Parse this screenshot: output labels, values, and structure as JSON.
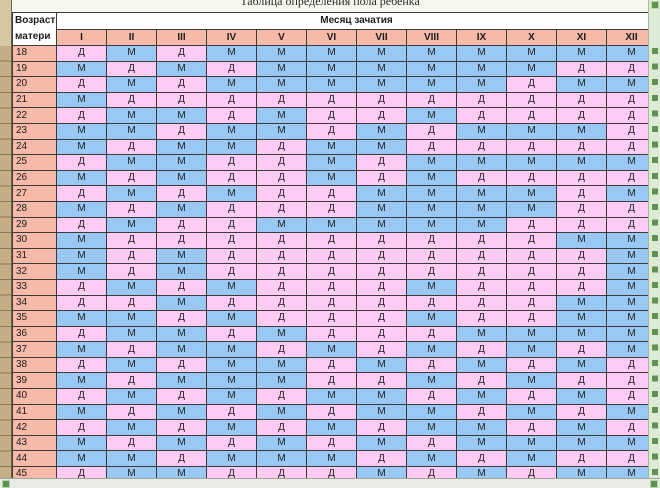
{
  "title": "Таблица определения пола ребенка",
  "table": {
    "age_header": {
      "line1": "Возраст",
      "line2": "матери"
    },
    "month_header": "Месяц зачатия",
    "months": [
      "I",
      "II",
      "III",
      "IV",
      "V",
      "VI",
      "VII",
      "VIII",
      "IX",
      "X",
      "XI",
      "XII"
    ],
    "rows": [
      {
        "age": 18,
        "cells": [
          "Д",
          "М",
          "Д",
          "М",
          "М",
          "М",
          "М",
          "М",
          "М",
          "М",
          "М",
          "М"
        ]
      },
      {
        "age": 19,
        "cells": [
          "М",
          "Д",
          "М",
          "Д",
          "М",
          "М",
          "М",
          "М",
          "М",
          "М",
          "Д",
          "Д"
        ]
      },
      {
        "age": 20,
        "cells": [
          "Д",
          "М",
          "Д",
          "М",
          "М",
          "М",
          "М",
          "М",
          "М",
          "Д",
          "М",
          "М"
        ]
      },
      {
        "age": 21,
        "cells": [
          "М",
          "Д",
          "Д",
          "Д",
          "Д",
          "Д",
          "Д",
          "Д",
          "Д",
          "Д",
          "Д",
          "Д"
        ]
      },
      {
        "age": 22,
        "cells": [
          "Д",
          "М",
          "М",
          "Д",
          "М",
          "Д",
          "Д",
          "М",
          "Д",
          "Д",
          "Д",
          "Д"
        ]
      },
      {
        "age": 23,
        "cells": [
          "М",
          "М",
          "Д",
          "М",
          "М",
          "Д",
          "М",
          "Д",
          "М",
          "М",
          "М",
          "Д"
        ]
      },
      {
        "age": 24,
        "cells": [
          "М",
          "Д",
          "М",
          "М",
          "Д",
          "М",
          "М",
          "Д",
          "Д",
          "Д",
          "Д",
          "Д"
        ]
      },
      {
        "age": 25,
        "cells": [
          "Д",
          "М",
          "М",
          "Д",
          "Д",
          "М",
          "Д",
          "М",
          "М",
          "М",
          "М",
          "М"
        ]
      },
      {
        "age": 26,
        "cells": [
          "М",
          "Д",
          "М",
          "Д",
          "Д",
          "М",
          "Д",
          "М",
          "Д",
          "Д",
          "Д",
          "Д"
        ]
      },
      {
        "age": 27,
        "cells": [
          "Д",
          "М",
          "Д",
          "М",
          "Д",
          "Д",
          "М",
          "М",
          "М",
          "М",
          "Д",
          "М"
        ]
      },
      {
        "age": 28,
        "cells": [
          "М",
          "Д",
          "М",
          "Д",
          "Д",
          "Д",
          "М",
          "М",
          "М",
          "М",
          "Д",
          "Д"
        ]
      },
      {
        "age": 29,
        "cells": [
          "Д",
          "М",
          "Д",
          "Д",
          "М",
          "М",
          "М",
          "М",
          "М",
          "Д",
          "Д",
          "Д"
        ]
      },
      {
        "age": 30,
        "cells": [
          "М",
          "Д",
          "Д",
          "Д",
          "Д",
          "Д",
          "Д",
          "Д",
          "Д",
          "Д",
          "М",
          "М"
        ]
      },
      {
        "age": 31,
        "cells": [
          "М",
          "Д",
          "М",
          "Д",
          "Д",
          "Д",
          "Д",
          "Д",
          "Д",
          "Д",
          "Д",
          "М"
        ]
      },
      {
        "age": 32,
        "cells": [
          "М",
          "Д",
          "М",
          "Д",
          "Д",
          "Д",
          "Д",
          "Д",
          "Д",
          "Д",
          "Д",
          "М"
        ]
      },
      {
        "age": 33,
        "cells": [
          "Д",
          "М",
          "Д",
          "М",
          "Д",
          "Д",
          "Д",
          "М",
          "Д",
          "Д",
          "Д",
          "М"
        ]
      },
      {
        "age": 34,
        "cells": [
          "Д",
          "Д",
          "М",
          "Д",
          "Д",
          "Д",
          "Д",
          "Д",
          "Д",
          "Д",
          "М",
          "М"
        ]
      },
      {
        "age": 35,
        "cells": [
          "М",
          "М",
          "Д",
          "М",
          "Д",
          "Д",
          "Д",
          "М",
          "Д",
          "Д",
          "М",
          "М"
        ]
      },
      {
        "age": 36,
        "cells": [
          "Д",
          "М",
          "М",
          "Д",
          "М",
          "Д",
          "Д",
          "Д",
          "М",
          "М",
          "М",
          "М"
        ]
      },
      {
        "age": 37,
        "cells": [
          "М",
          "Д",
          "М",
          "М",
          "Д",
          "М",
          "Д",
          "М",
          "Д",
          "М",
          "Д",
          "М"
        ]
      },
      {
        "age": 38,
        "cells": [
          "Д",
          "М",
          "Д",
          "М",
          "М",
          "Д",
          "М",
          "Д",
          "М",
          "Д",
          "М",
          "Д"
        ]
      },
      {
        "age": 39,
        "cells": [
          "М",
          "Д",
          "М",
          "М",
          "М",
          "Д",
          "Д",
          "М",
          "Д",
          "М",
          "Д",
          "Д"
        ]
      },
      {
        "age": 40,
        "cells": [
          "Д",
          "М",
          "Д",
          "М",
          "Д",
          "М",
          "М",
          "Д",
          "М",
          "Д",
          "М",
          "Д"
        ]
      },
      {
        "age": 41,
        "cells": [
          "М",
          "Д",
          "М",
          "Д",
          "М",
          "Д",
          "М",
          "М",
          "Д",
          "М",
          "Д",
          "М"
        ]
      },
      {
        "age": 42,
        "cells": [
          "Д",
          "М",
          "Д",
          "М",
          "Д",
          "М",
          "Д",
          "М",
          "М",
          "Д",
          "М",
          "Д"
        ]
      },
      {
        "age": 43,
        "cells": [
          "М",
          "Д",
          "М",
          "Д",
          "М",
          "Д",
          "М",
          "Д",
          "М",
          "М",
          "М",
          "М"
        ]
      },
      {
        "age": 44,
        "cells": [
          "М",
          "М",
          "Д",
          "М",
          "М",
          "М",
          "Д",
          "М",
          "Д",
          "М",
          "Д",
          "Д"
        ]
      },
      {
        "age": 45,
        "cells": [
          "Д",
          "М",
          "М",
          "Д",
          "Д",
          "Д",
          "М",
          "Д",
          "М",
          "Д",
          "М",
          "М"
        ]
      }
    ]
  },
  "colors": {
    "cells": {
      "Д": "#fdcbf3",
      "М": "#99c8f4"
    },
    "age_column": "#f7b9a8",
    "month_row": "#f7b9a8",
    "header": "#ffffff"
  }
}
